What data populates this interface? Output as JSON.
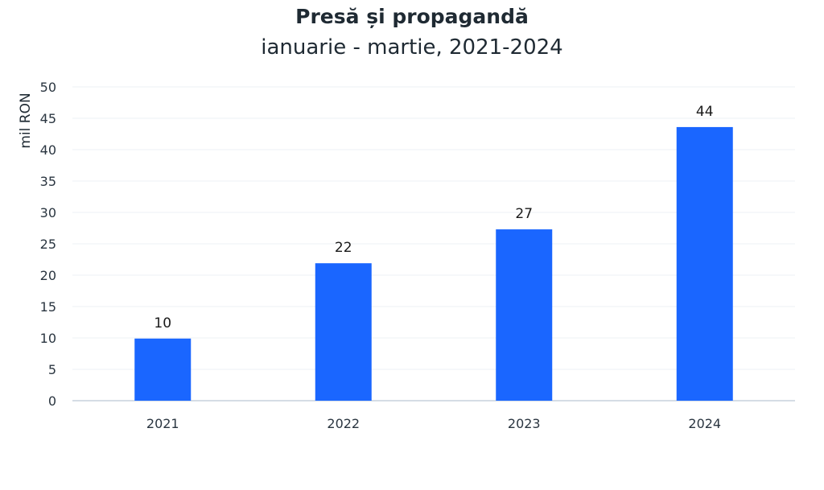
{
  "chart_data": {
    "type": "bar",
    "title": "Presă și propagandă",
    "subtitle": "ianuarie - martie, 2021-2024",
    "xlabel": "",
    "ylabel": "mil RON",
    "categories": [
      "2021",
      "2022",
      "2023",
      "2024"
    ],
    "values": [
      9.9,
      21.9,
      27.3,
      43.6
    ],
    "data_labels": [
      "10",
      "22",
      "27",
      "44"
    ],
    "ylim": [
      0,
      50
    ],
    "yticks": [
      "0",
      "5",
      "10",
      "15",
      "20",
      "25",
      "30",
      "35",
      "40",
      "45",
      "50"
    ],
    "grid": true,
    "legend": "none",
    "colors": {
      "bar": "#1a66ff",
      "grid": "#eef1f4",
      "axis": "#d5dde5"
    }
  }
}
